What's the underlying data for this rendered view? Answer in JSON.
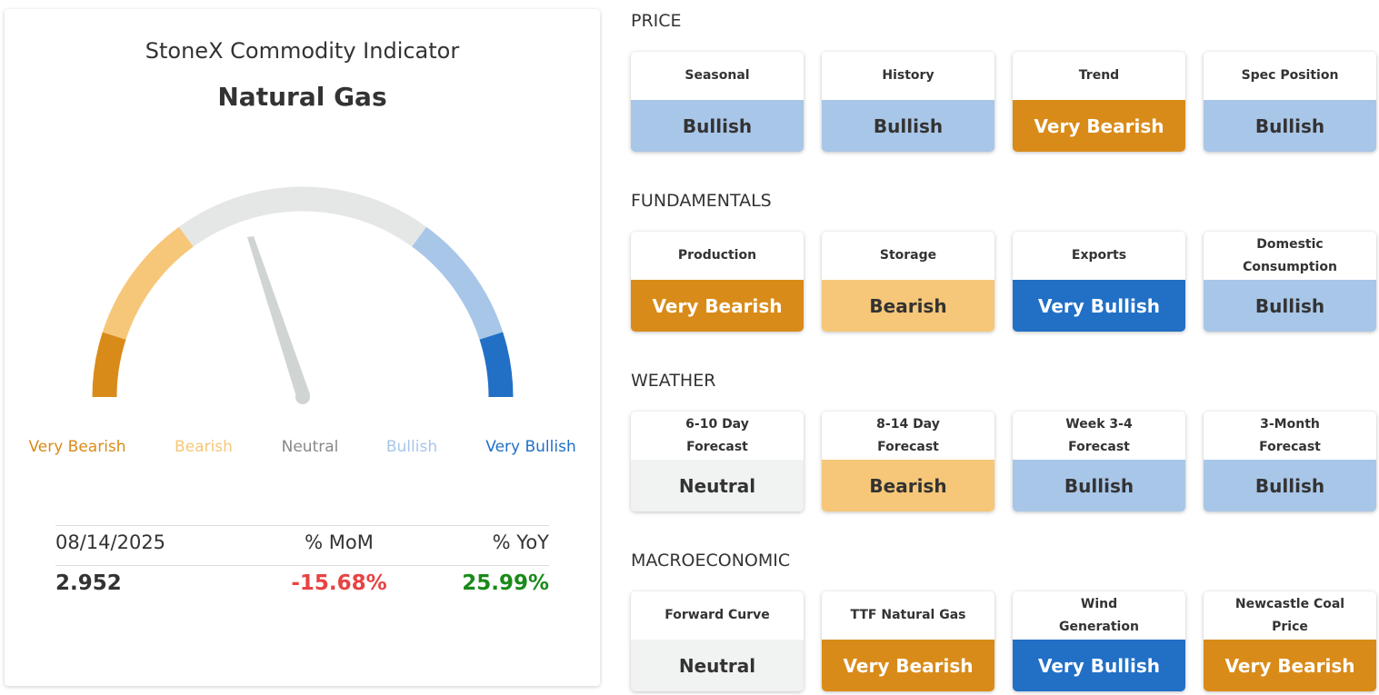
{
  "indicator": {
    "title": "StoneX Commodity Indicator",
    "commodity": "Natural Gas",
    "gauge_levels": [
      {
        "label": "Very Bearish",
        "color": "#d98b19",
        "label_color": "#d98b19"
      },
      {
        "label": "Bearish",
        "color": "#f6c778",
        "label_color": "#f6c778"
      },
      {
        "label": "Neutral",
        "color": "#e5e7e6",
        "label_color": "#888888"
      },
      {
        "label": "Bullish",
        "color": "#a8c6e8",
        "label_color": "#a8c6e8"
      },
      {
        "label": "Very Bullish",
        "color": "#2170c6",
        "label_color": "#2170c6"
      }
    ],
    "table": {
      "headers": [
        "08/14/2025",
        "% MoM",
        "% YoY"
      ],
      "values": [
        "2.952",
        "-15.68%",
        "25.99%"
      ]
    }
  },
  "sections": [
    {
      "title": "PRICE",
      "cards": [
        {
          "label": "Seasonal",
          "signal": "Bullish",
          "color": "#a8c6e8"
        },
        {
          "label": "History",
          "signal": "Bullish",
          "color": "#a8c6e8"
        },
        {
          "label": "Trend",
          "signal": "Very Bearish",
          "color": "#d98b19"
        },
        {
          "label": "Spec Position",
          "signal": "Bullish",
          "color": "#a8c6e8"
        }
      ]
    },
    {
      "title": "FUNDAMENTALS",
      "cards": [
        {
          "label": "Production",
          "signal": "Very Bearish",
          "color": "#d98b19"
        },
        {
          "label": "Storage",
          "signal": "Bearish",
          "color": "#f6c778"
        },
        {
          "label": "Exports",
          "signal": "Very Bullish",
          "color": "#2170c6"
        },
        {
          "label": "Domestic Consumption",
          "signal": "Bullish",
          "color": "#a8c6e8"
        }
      ]
    },
    {
      "title": "WEATHER",
      "cards": [
        {
          "label": "6-10 Day Forecast",
          "signal": "Neutral",
          "color": "#f1f2f2"
        },
        {
          "label": "8-14 Day Forecast",
          "signal": "Bearish",
          "color": "#f6c778"
        },
        {
          "label": "Week 3-4 Forecast",
          "signal": "Bullish",
          "color": "#a8c6e8"
        },
        {
          "label": "3-Month Forecast",
          "signal": "Bullish",
          "color": "#a8c6e8"
        }
      ]
    },
    {
      "title": "MACROECONOMIC",
      "cards": [
        {
          "label": "Forward Curve",
          "signal": "Neutral",
          "color": "#f1f2f2"
        },
        {
          "label": "TTF Natural Gas",
          "signal": "Very Bearish",
          "color": "#d98b19"
        },
        {
          "label": "Wind Generation",
          "signal": "Very Bullish",
          "color": "#2170c6"
        },
        {
          "label": "Newcastle Coal Price",
          "signal": "Very Bearish",
          "color": "#d98b19"
        }
      ]
    }
  ]
}
